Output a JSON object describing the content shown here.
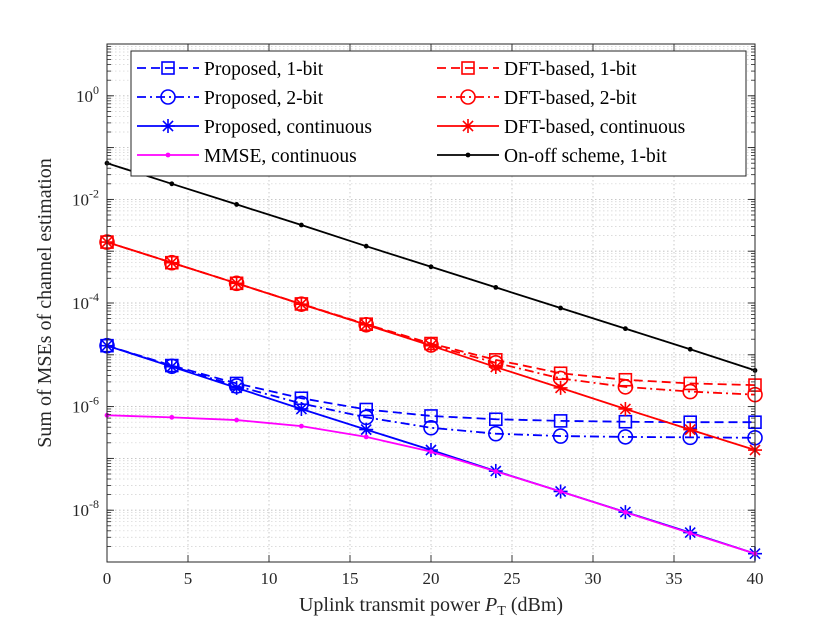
{
  "chart_data": {
    "type": "line",
    "yscale": "log",
    "xlabel": "Uplink transmit power",
    "xlabel_symbol": "P",
    "xlabel_subscript": "T",
    "xlabel_unit": "(dBm)",
    "ylabel": "Sum of MSEs of channel estimation",
    "xlim": [
      0,
      40
    ],
    "ylim": [
      1e-09,
      10.0
    ],
    "x_ticks": [
      0,
      5,
      10,
      15,
      20,
      25,
      30,
      35,
      40
    ],
    "x_tick_labels": [
      "0",
      "5",
      "10",
      "15",
      "20",
      "25",
      "30",
      "35",
      "40"
    ],
    "y_ticks": [
      1e-08,
      1e-06,
      0.0001,
      0.01,
      1.0
    ],
    "y_tick_labels": [
      {
        "base": "10",
        "exp": "-8"
      },
      {
        "base": "10",
        "exp": "-6"
      },
      {
        "base": "10",
        "exp": "-4"
      },
      {
        "base": "10",
        "exp": "-2"
      },
      {
        "base": "10",
        "exp": "0"
      }
    ],
    "grid": true,
    "legend_position": "top",
    "x": [
      0,
      4,
      8,
      12,
      16,
      20,
      24,
      28,
      32,
      36,
      40
    ],
    "series": [
      {
        "name": "Proposed, 1-bit",
        "color": "#0000ff",
        "dash": "dashed",
        "marker": "square",
        "values": [
          1.5e-05,
          6.2e-06,
          2.8e-06,
          1.45e-06,
          8.8e-07,
          6.6e-07,
          5.7e-07,
          5.3e-07,
          5.1e-07,
          5e-07,
          5e-07
        ]
      },
      {
        "name": "Proposed, 2-bit",
        "color": "#0000ff",
        "dash": "dashdot",
        "marker": "circle",
        "values": [
          1.5e-05,
          6e-06,
          2.5e-06,
          1.15e-06,
          6.2e-07,
          3.9e-07,
          3e-07,
          2.7e-07,
          2.6e-07,
          2.55e-07,
          2.5e-07
        ]
      },
      {
        "name": "Proposed, continuous",
        "color": "#0000ff",
        "dash": "solid",
        "marker": "star",
        "values": [
          1.5e-05,
          5.9e-06,
          2.3e-06,
          9e-07,
          3.6e-07,
          1.45e-07,
          5.7e-08,
          2.3e-08,
          9.2e-09,
          3.7e-09,
          1.45e-09
        ]
      },
      {
        "name": "MMSE, continuous",
        "color": "#ff00ff",
        "dash": "solid",
        "marker": "dot",
        "values": [
          6.8e-07,
          6.2e-07,
          5.5e-07,
          4.2e-07,
          2.6e-07,
          1.35e-07,
          5.6e-08,
          2.3e-08,
          9.1e-09,
          3.6e-09,
          1.45e-09
        ]
      },
      {
        "name": "DFT-based, 1-bit",
        "color": "#ff0000",
        "dash": "dashed",
        "marker": "square",
        "values": [
          0.0015,
          0.0006,
          0.00024,
          9.6e-05,
          3.9e-05,
          1.65e-05,
          8e-06,
          4.4e-06,
          3.3e-06,
          2.8e-06,
          2.6e-06
        ]
      },
      {
        "name": "DFT-based, 2-bit",
        "color": "#ff0000",
        "dash": "dashdot",
        "marker": "circle",
        "values": [
          0.0015,
          0.0006,
          0.00024,
          9.5e-05,
          3.8e-05,
          1.55e-05,
          7e-06,
          3.5e-06,
          2.4e-06,
          1.95e-06,
          1.7e-06
        ]
      },
      {
        "name": "DFT-based, continuous",
        "color": "#ff0000",
        "dash": "solid",
        "marker": "star",
        "values": [
          0.0015,
          0.0006,
          0.00024,
          9.5e-05,
          3.8e-05,
          1.5e-05,
          5.8e-06,
          2.3e-06,
          9e-07,
          3.6e-07,
          1.45e-07
        ]
      },
      {
        "name": "On-off scheme, 1-bit",
        "color": "#000000",
        "dash": "solid",
        "marker": "dot",
        "values": [
          0.05,
          0.02,
          0.008,
          0.0032,
          0.00125,
          0.0005,
          0.0002,
          8e-05,
          3.2e-05,
          1.28e-05,
          5e-06
        ]
      }
    ],
    "legend_order": [
      0,
      4,
      1,
      5,
      2,
      6,
      3,
      7
    ]
  }
}
